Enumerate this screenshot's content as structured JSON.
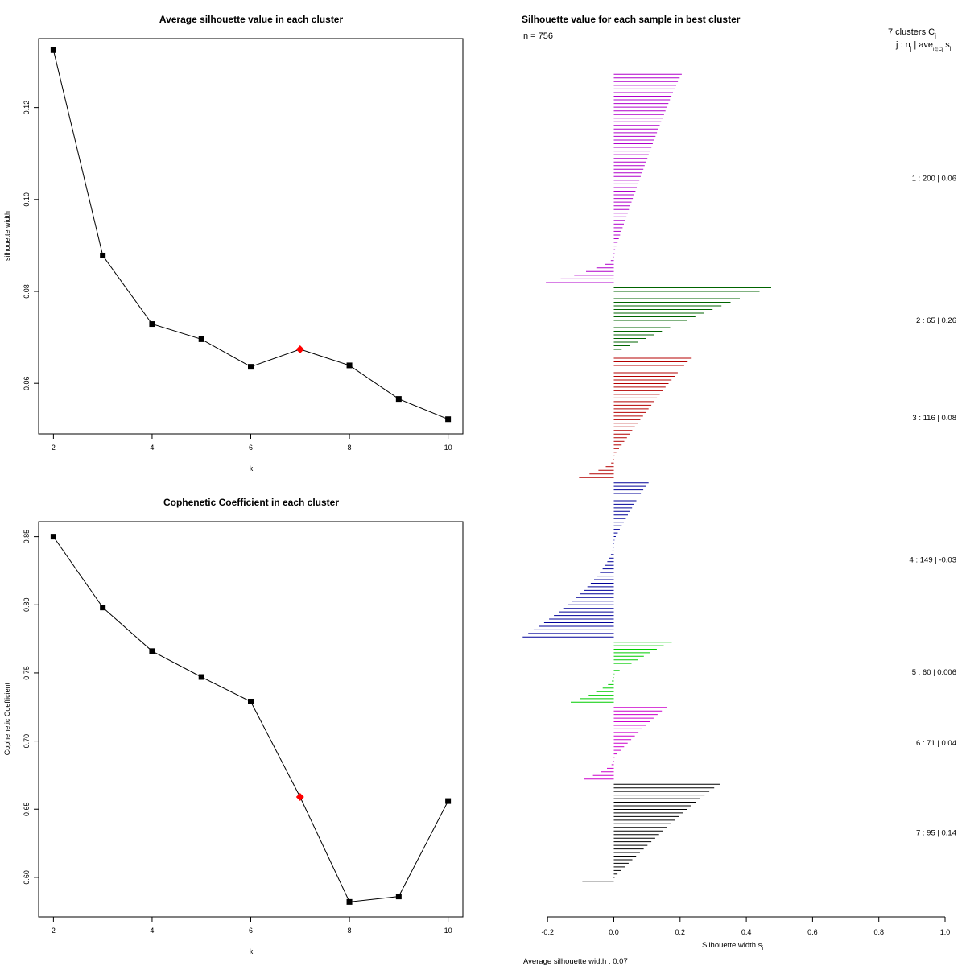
{
  "chart_data": [
    {
      "type": "line",
      "title": "Average silhouette value in each cluster",
      "xlabel": "k",
      "ylabel": "silhouette width",
      "x": [
        2,
        3,
        4,
        5,
        6,
        7,
        8,
        9,
        10
      ],
      "y": [
        0.1325,
        0.0878,
        0.0729,
        0.0696,
        0.0636,
        0.0674,
        0.0639,
        0.0566,
        0.0522
      ],
      "highlight_k": 7,
      "xticks": [
        "2",
        "4",
        "6",
        "8",
        "10"
      ],
      "yticks": [
        "0.06",
        "0.08",
        "0.10",
        "0.12"
      ],
      "xlim": [
        1.7,
        10.3
      ],
      "ylim": [
        0.049,
        0.135
      ]
    },
    {
      "type": "line",
      "title": "Cophenetic Coefficient in each cluster",
      "xlabel": "k",
      "ylabel": "Cophenetic Coefficient",
      "x": [
        2,
        3,
        4,
        5,
        6,
        7,
        8,
        9,
        10
      ],
      "y": [
        0.85,
        0.798,
        0.766,
        0.747,
        0.729,
        0.659,
        0.582,
        0.586,
        0.656
      ],
      "highlight_k": 7,
      "xticks": [
        "2",
        "4",
        "6",
        "8",
        "10"
      ],
      "yticks": [
        "0.60",
        "0.65",
        "0.70",
        "0.75",
        "0.80",
        "0.85"
      ],
      "xlim": [
        1.7,
        10.3
      ],
      "ylim": [
        0.571,
        0.861
      ]
    },
    {
      "type": "bar",
      "orientation": "horizontal",
      "title": "Silhouette value for each sample in best cluster",
      "n_label": "n = 756",
      "xlabel": "Silhouette width s",
      "xlabel_sub": "i",
      "xticks": [
        "-0.2",
        "0.0",
        "0.2",
        "0.4",
        "0.6",
        "0.8",
        "1.0"
      ],
      "xlim": [
        -0.2,
        1.0
      ],
      "legend_title": "7 clusters C",
      "legend_title_sub": "j",
      "legend_header": "j :  n",
      "legend_header_sub": "j",
      "legend_header_tail": " | ave",
      "legend_header_sub2": "i∈Cj",
      "legend_header_end": " s",
      "legend_header_end_sub": "i",
      "avg_text": "Average silhouette width :  0.07",
      "clusters": [
        {
          "id": 1,
          "n": 200,
          "label": "1 :   200  |  0.06",
          "color": "#b000cc",
          "max": 0.205,
          "min": -0.205,
          "neg_frac": 0.145
        },
        {
          "id": 2,
          "n": 65,
          "label": "2 :   65  |  0.26",
          "color": "#006400",
          "max": 0.475,
          "min": 0.0,
          "neg_frac": 0.0
        },
        {
          "id": 3,
          "n": 116,
          "label": "3 :   116  |  0.08",
          "color": "#b40000",
          "max": 0.235,
          "min": -0.105,
          "neg_frac": 0.18
        },
        {
          "id": 4,
          "n": 149,
          "label": "4 :   149  |  -0.03",
          "color": "#000099",
          "max": 0.105,
          "min": -0.275,
          "neg_frac": 0.61
        },
        {
          "id": 5,
          "n": 60,
          "label": "5 :   60  |  0.006",
          "color": "#00cc00",
          "max": 0.175,
          "min": -0.13,
          "neg_frac": 0.43
        },
        {
          "id": 6,
          "n": 71,
          "label": "6 :   71  |  0.04",
          "color": "#cc00cc",
          "max": 0.16,
          "min": -0.09,
          "neg_frac": 0.3
        },
        {
          "id": 7,
          "n": 95,
          "label": "7 :   95  |  0.14",
          "color": "#000000",
          "max": 0.32,
          "min": -0.095,
          "neg_frac": 0.035
        }
      ]
    }
  ]
}
